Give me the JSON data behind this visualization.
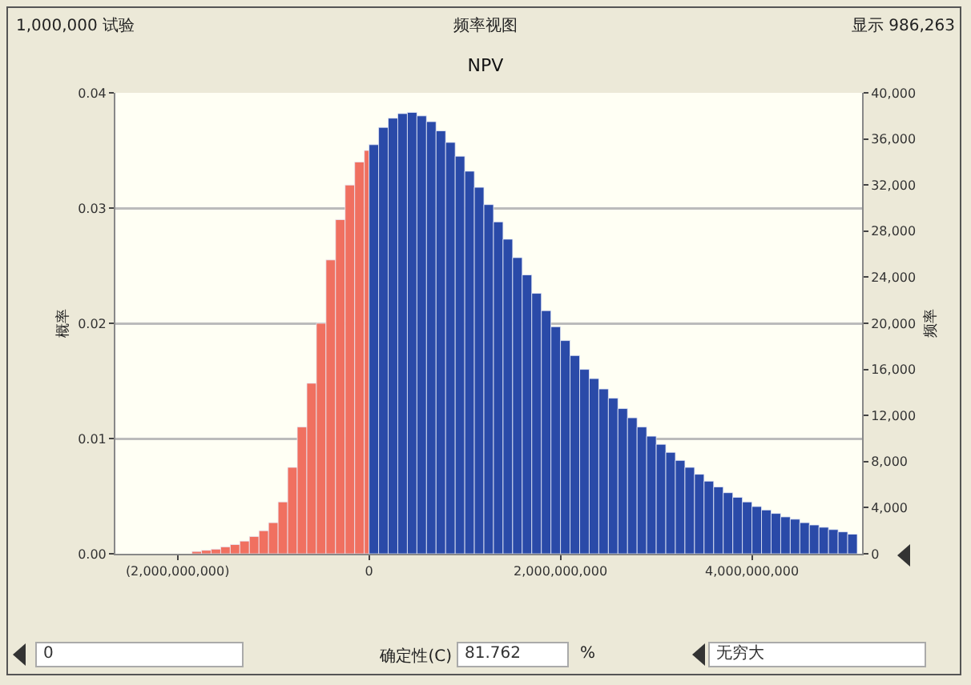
{
  "chart_data": {
    "type": "histogram",
    "title": "NPV",
    "ylabel": "概率",
    "y2label": "频率",
    "annotations": [
      "1,000,000 试验",
      "频率视图",
      "显示 986,263",
      "0",
      "确定性(C)",
      "81.762",
      "%",
      "无穷大"
    ],
    "bins": [
      -1850000000,
      -1750000000,
      -1650000000,
      -1550000000,
      -1450000000,
      -1350000000,
      -1250000000,
      -1150000000,
      -1050000000,
      -950000000,
      -850000000,
      -750000000,
      -650000000,
      -550000000,
      -450000000,
      -350000000,
      -250000000,
      -150000000,
      -50000000,
      0,
      100000000,
      200000000,
      300000000,
      400000000,
      500000000,
      600000000,
      700000000,
      800000000,
      900000000,
      1000000000,
      1100000000,
      1200000000,
      1300000000,
      1400000000,
      1500000000,
      1600000000,
      1700000000,
      1800000000,
      1900000000,
      2000000000,
      2100000000,
      2200000000,
      2300000000,
      2400000000,
      2500000000,
      2600000000,
      2700000000,
      2800000000,
      2900000000,
      3000000000,
      3100000000,
      3200000000,
      3300000000,
      3400000000,
      3500000000,
      3600000000,
      3700000000,
      3800000000,
      3900000000,
      4000000000,
      4100000000,
      4200000000,
      4300000000,
      4400000000,
      4500000000,
      4600000000,
      4700000000,
      4800000000,
      4900000000,
      5000000000,
      5100000000
    ],
    "values": [
      0.0002,
      0.0003,
      0.0004,
      0.0006,
      0.0008,
      0.0011,
      0.0015,
      0.002,
      0.0027,
      0.0045,
      0.0075,
      0.011,
      0.0148,
      0.02,
      0.0255,
      0.029,
      0.032,
      0.034,
      0.035,
      0.0355,
      0.037,
      0.0378,
      0.0382,
      0.0383,
      0.038,
      0.0375,
      0.0367,
      0.0357,
      0.0345,
      0.0332,
      0.0318,
      0.0303,
      0.0288,
      0.0273,
      0.0257,
      0.0242,
      0.0226,
      0.0211,
      0.0197,
      0.0185,
      0.0172,
      0.016,
      0.0152,
      0.0143,
      0.0135,
      0.0126,
      0.0118,
      0.011,
      0.0102,
      0.0095,
      0.0088,
      0.0081,
      0.0075,
      0.0069,
      0.0063,
      0.0058,
      0.0053,
      0.0049,
      0.0045,
      0.0041,
      0.0038,
      0.0035,
      0.0032,
      0.003,
      0.0027,
      0.0025,
      0.0023,
      0.0021,
      0.0019,
      0.0017
    ],
    "colors": [
      "#f07060",
      "#f07060",
      "#f07060",
      "#f07060",
      "#f07060",
      "#f07060",
      "#f07060",
      "#f07060",
      "#f07060",
      "#f07060",
      "#f07060",
      "#f07060",
      "#f07060",
      "#f07060",
      "#f07060",
      "#f07060",
      "#f07060",
      "#f07060",
      "#f07060",
      "#2a4aa8",
      "#2a4aa8",
      "#2a4aa8",
      "#2a4aa8",
      "#2a4aa8",
      "#2a4aa8",
      "#2a4aa8",
      "#2a4aa8",
      "#2a4aa8",
      "#2a4aa8",
      "#2a4aa8",
      "#2a4aa8",
      "#2a4aa8",
      "#2a4aa8",
      "#2a4aa8",
      "#2a4aa8",
      "#2a4aa8",
      "#2a4aa8",
      "#2a4aa8",
      "#2a4aa8",
      "#2a4aa8",
      "#2a4aa8",
      "#2a4aa8",
      "#2a4aa8",
      "#2a4aa8",
      "#2a4aa8",
      "#2a4aa8",
      "#2a4aa8",
      "#2a4aa8",
      "#2a4aa8",
      "#2a4aa8",
      "#2a4aa8",
      "#2a4aa8",
      "#2a4aa8",
      "#2a4aa8",
      "#2a4aa8",
      "#2a4aa8",
      "#2a4aa8",
      "#2a4aa8",
      "#2a4aa8",
      "#2a4aa8",
      "#2a4aa8",
      "#2a4aa8",
      "#2a4aa8",
      "#2a4aa8",
      "#2a4aa8",
      "#2a4aa8",
      "#2a4aa8",
      "#2a4aa8",
      "#2a4aa8",
      "#2a4aa8"
    ],
    "xlim": [
      -2650000000,
      5150000000
    ],
    "xticks": [
      {
        "value": -2000000000,
        "label": "(2,000,000,000)"
      },
      {
        "value": 0,
        "label": "0"
      },
      {
        "value": 2000000000,
        "label": "2,000,000,000"
      },
      {
        "value": 4000000000,
        "label": "4,000,000,000"
      }
    ],
    "ylim": [
      0,
      0.04
    ],
    "yticks": [
      {
        "value": 0,
        "label": "0.00"
      },
      {
        "value": 0.01,
        "label": "0.01"
      },
      {
        "value": 0.02,
        "label": "0.02"
      },
      {
        "value": 0.03,
        "label": "0.03"
      },
      {
        "value": 0.04,
        "label": "0.04"
      }
    ],
    "y2lim": [
      0,
      40000
    ],
    "y2ticks": [
      0,
      {
        "value": 4000,
        "label": "4,000"
      },
      {
        "value": 8000,
        "label": "8,000"
      },
      {
        "value": 12000,
        "label": "12,000"
      },
      {
        "value": 16000,
        "label": "16,000"
      },
      {
        "value": 20000,
        "label": "20,000"
      },
      {
        "value": 24000,
        "label": "24,000"
      },
      {
        "value": 28000,
        "label": "28,000"
      },
      {
        "value": 32000,
        "label": "32,000"
      },
      {
        "value": 36000,
        "label": "36,000"
      },
      {
        "value": 40000,
        "label": "40,000"
      }
    ],
    "grid": "y"
  }
}
